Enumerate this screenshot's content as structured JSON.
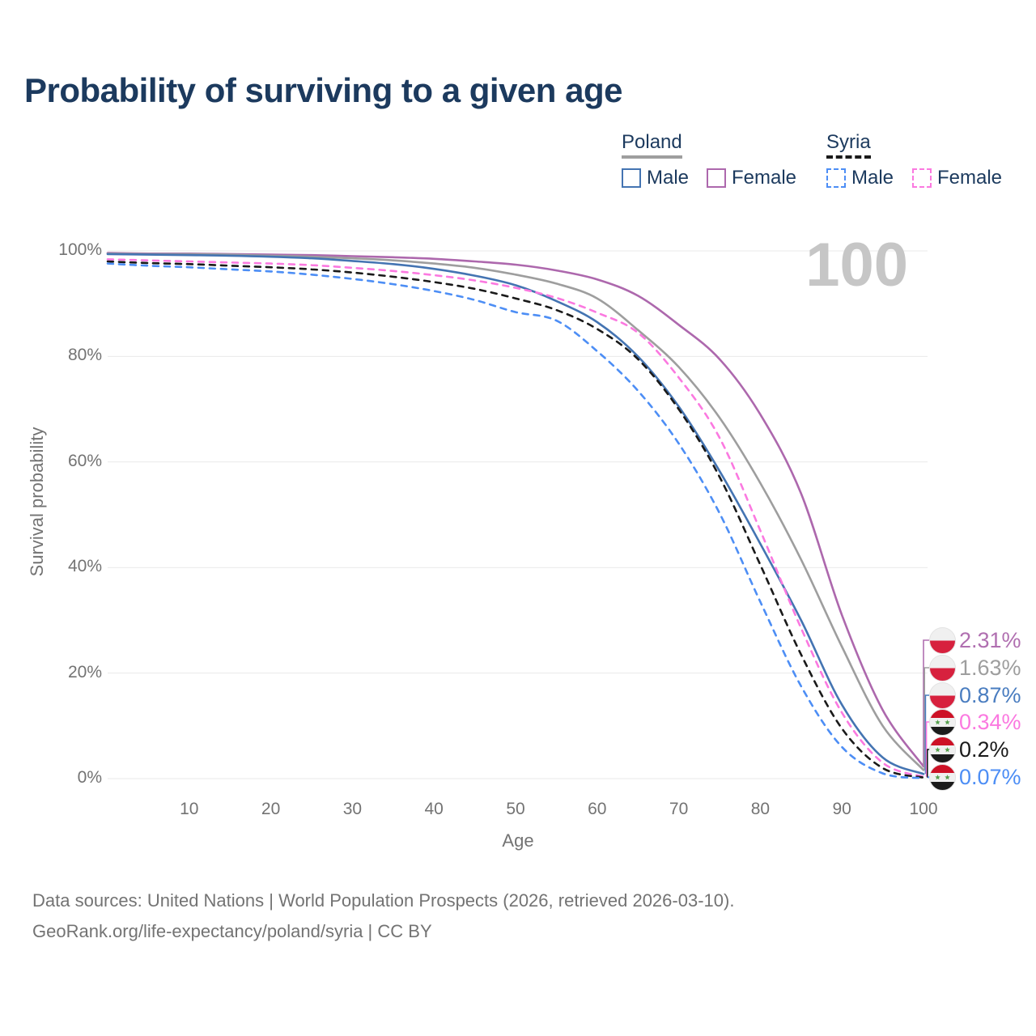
{
  "title": "Probability of surviving to a given age",
  "watermark": "100",
  "legend": {
    "poland": {
      "label": "Poland",
      "underline_color": "#9e9e9e",
      "underline_style": "solid",
      "items": [
        {
          "label": "Male",
          "color": "#4474b2",
          "style": "solid"
        },
        {
          "label": "Female",
          "color": "#ad68ad",
          "style": "solid"
        }
      ]
    },
    "syria": {
      "label": "Syria",
      "underline_color": "#1a1a1a",
      "underline_style": "dashed",
      "items": [
        {
          "label": "Male",
          "color": "#4d8ef5",
          "style": "dashed"
        },
        {
          "label": "Female",
          "color": "#fb79e0",
          "style": "dashed"
        }
      ]
    }
  },
  "axes": {
    "y_label": "Survival probability",
    "x_label": "Age",
    "y_ticks": [
      {
        "label": "100%",
        "value": 100
      },
      {
        "label": "80%",
        "value": 80
      },
      {
        "label": "60%",
        "value": 60
      },
      {
        "label": "40%",
        "value": 40
      },
      {
        "label": "20%",
        "value": 20
      },
      {
        "label": "0%",
        "value": 0
      }
    ],
    "x_ticks": [
      {
        "label": "10",
        "value": 10
      },
      {
        "label": "20",
        "value": 20
      },
      {
        "label": "30",
        "value": 30
      },
      {
        "label": "40",
        "value": 40
      },
      {
        "label": "50",
        "value": 50
      },
      {
        "label": "60",
        "value": 60
      },
      {
        "label": "70",
        "value": 70
      },
      {
        "label": "80",
        "value": 80
      },
      {
        "label": "90",
        "value": 90
      },
      {
        "label": "100",
        "value": 100
      }
    ]
  },
  "end_labels": [
    {
      "value": "2.31%",
      "series": "Poland Female",
      "flag": "poland",
      "color": "#b06fb0"
    },
    {
      "value": "1.63%",
      "series": "Poland",
      "flag": "poland",
      "color": "#9e9e9e"
    },
    {
      "value": "0.87%",
      "series": "Poland Male",
      "flag": "poland",
      "color": "#4a7dc0"
    },
    {
      "value": "0.34%",
      "series": "Syria Female",
      "flag": "syria",
      "color": "#fb79e0"
    },
    {
      "value": "0.2%",
      "series": "Syria",
      "flag": "syria",
      "color": "#1a1a1a"
    },
    {
      "value": "0.07%",
      "series": "Syria Male",
      "flag": "syria",
      "color": "#4d8ef5"
    }
  ],
  "footer": {
    "line1": "Data sources: United Nations | World Population Prospects (2026, retrieved 2026-03-10).",
    "line2": "GeoRank.org/life-expectancy/poland/syria | CC BY"
  },
  "chart_data": {
    "type": "line",
    "title": "Probability of surviving to a given age",
    "xlabel": "Age",
    "ylabel": "Survival probability",
    "xlim": [
      0,
      100
    ],
    "ylim": [
      0,
      100
    ],
    "grid": "horizontal",
    "legend_position": "top-right",
    "x": [
      0,
      5,
      10,
      15,
      20,
      25,
      30,
      35,
      40,
      45,
      50,
      55,
      60,
      65,
      70,
      75,
      80,
      85,
      90,
      95,
      100
    ],
    "series": [
      {
        "name": "Poland Female",
        "color": "#ad68ad",
        "dash": false,
        "values": [
          99.6,
          99.5,
          99.5,
          99.4,
          99.3,
          99.2,
          99.0,
          98.8,
          98.5,
          98.0,
          97.4,
          96.3,
          94.6,
          91.5,
          86.0,
          79.5,
          69.0,
          54.0,
          31.0,
          13.0,
          2.31
        ],
        "end_label": "2.31%"
      },
      {
        "name": "Poland",
        "color": "#9e9e9e",
        "dash": false,
        "values": [
          99.5,
          99.4,
          99.4,
          99.3,
          99.1,
          98.9,
          98.6,
          98.2,
          97.6,
          96.8,
          95.5,
          93.8,
          91.0,
          85.0,
          78.0,
          68.4,
          56.0,
          41.5,
          25.0,
          10.0,
          1.63
        ],
        "end_label": "1.63%"
      },
      {
        "name": "Poland Male",
        "color": "#4474b2",
        "dash": false,
        "values": [
          99.4,
          99.3,
          99.2,
          99.1,
          98.9,
          98.6,
          98.1,
          97.5,
          96.6,
          95.3,
          93.5,
          90.5,
          86.5,
          80.0,
          70.5,
          58.3,
          44.5,
          30.0,
          14.0,
          4.0,
          0.87
        ],
        "end_label": "0.87%"
      },
      {
        "name": "Syria Female",
        "color": "#fb79e0",
        "dash": true,
        "values": [
          98.4,
          98.2,
          98.0,
          97.8,
          97.6,
          97.3,
          96.8,
          96.2,
          95.4,
          94.4,
          93.0,
          91.1,
          88.3,
          84.5,
          76.0,
          64.6,
          47.0,
          28.5,
          12.5,
          3.0,
          0.34
        ],
        "end_label": "0.34%"
      },
      {
        "name": "Syria",
        "color": "#1a1a1a",
        "dash": true,
        "values": [
          98.0,
          97.7,
          97.5,
          97.2,
          96.9,
          96.5,
          95.9,
          95.1,
          94.1,
          92.8,
          91.0,
          88.8,
          85.2,
          79.5,
          70.0,
          57.2,
          40.5,
          23.5,
          9.5,
          2.0,
          0.2
        ],
        "end_label": "0.2%"
      },
      {
        "name": "Syria Male",
        "color": "#4d8ef5",
        "dash": true,
        "values": [
          97.6,
          97.2,
          96.9,
          96.5,
          96.1,
          95.5,
          94.7,
          93.7,
          92.4,
          90.7,
          88.4,
          86.8,
          81.0,
          73.5,
          63.5,
          50.3,
          33.5,
          17.5,
          6.0,
          1.0,
          0.07
        ],
        "end_label": "0.07%"
      }
    ]
  }
}
